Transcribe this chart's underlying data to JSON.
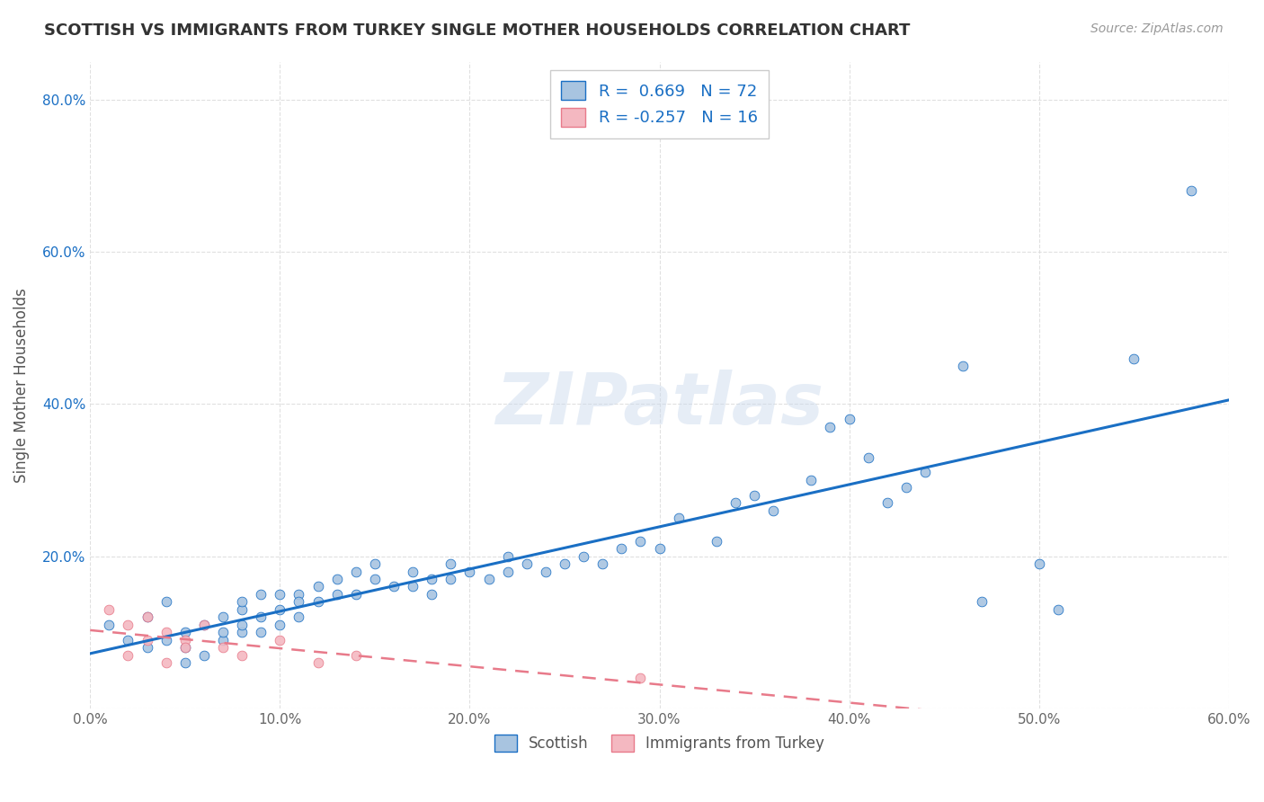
{
  "title": "SCOTTISH VS IMMIGRANTS FROM TURKEY SINGLE MOTHER HOUSEHOLDS CORRELATION CHART",
  "source": "Source: ZipAtlas.com",
  "ylabel": "Single Mother Households",
  "xlabel": "",
  "xlim": [
    0.0,
    0.6
  ],
  "ylim": [
    0.0,
    0.85
  ],
  "xticks": [
    0.0,
    0.1,
    0.2,
    0.3,
    0.4,
    0.5,
    0.6
  ],
  "xticklabels": [
    "0.0%",
    "10.0%",
    "20.0%",
    "30.0%",
    "40.0%",
    "50.0%",
    "60.0%"
  ],
  "yticks": [
    0.0,
    0.2,
    0.4,
    0.6,
    0.8
  ],
  "yticklabels": [
    "",
    "20.0%",
    "40.0%",
    "60.0%",
    "80.0%"
  ],
  "scottish_R": 0.669,
  "scottish_N": 72,
  "turkey_R": -0.257,
  "turkey_N": 16,
  "scottish_color": "#a8c4e0",
  "turkey_color": "#f4b8c1",
  "scottish_line_color": "#1a6fc4",
  "turkey_line_color": "#e87a8a",
  "scottish_x": [
    0.01,
    0.02,
    0.03,
    0.03,
    0.04,
    0.04,
    0.05,
    0.05,
    0.05,
    0.06,
    0.06,
    0.07,
    0.07,
    0.07,
    0.08,
    0.08,
    0.08,
    0.08,
    0.09,
    0.09,
    0.09,
    0.1,
    0.1,
    0.1,
    0.11,
    0.11,
    0.11,
    0.12,
    0.12,
    0.13,
    0.13,
    0.14,
    0.14,
    0.15,
    0.15,
    0.16,
    0.17,
    0.17,
    0.18,
    0.18,
    0.19,
    0.19,
    0.2,
    0.21,
    0.22,
    0.22,
    0.23,
    0.24,
    0.25,
    0.26,
    0.27,
    0.28,
    0.29,
    0.3,
    0.31,
    0.33,
    0.34,
    0.35,
    0.36,
    0.38,
    0.39,
    0.4,
    0.41,
    0.42,
    0.43,
    0.44,
    0.46,
    0.47,
    0.5,
    0.51,
    0.55,
    0.58
  ],
  "scottish_y": [
    0.11,
    0.09,
    0.08,
    0.12,
    0.09,
    0.14,
    0.06,
    0.1,
    0.08,
    0.07,
    0.11,
    0.09,
    0.12,
    0.1,
    0.1,
    0.13,
    0.11,
    0.14,
    0.1,
    0.15,
    0.12,
    0.11,
    0.15,
    0.13,
    0.12,
    0.15,
    0.14,
    0.14,
    0.16,
    0.15,
    0.17,
    0.15,
    0.18,
    0.17,
    0.19,
    0.16,
    0.16,
    0.18,
    0.15,
    0.17,
    0.17,
    0.19,
    0.18,
    0.17,
    0.18,
    0.2,
    0.19,
    0.18,
    0.19,
    0.2,
    0.19,
    0.21,
    0.22,
    0.21,
    0.25,
    0.22,
    0.27,
    0.28,
    0.26,
    0.3,
    0.37,
    0.38,
    0.33,
    0.27,
    0.29,
    0.31,
    0.45,
    0.14,
    0.19,
    0.13,
    0.46,
    0.68
  ],
  "turkey_x": [
    0.01,
    0.02,
    0.02,
    0.03,
    0.03,
    0.04,
    0.04,
    0.05,
    0.05,
    0.06,
    0.07,
    0.08,
    0.1,
    0.12,
    0.14,
    0.29
  ],
  "turkey_y": [
    0.13,
    0.11,
    0.07,
    0.12,
    0.09,
    0.1,
    0.06,
    0.09,
    0.08,
    0.11,
    0.08,
    0.07,
    0.09,
    0.06,
    0.07,
    0.04
  ],
  "watermark": "ZIPatlas",
  "background_color": "#ffffff",
  "grid_color": "#dddddd"
}
